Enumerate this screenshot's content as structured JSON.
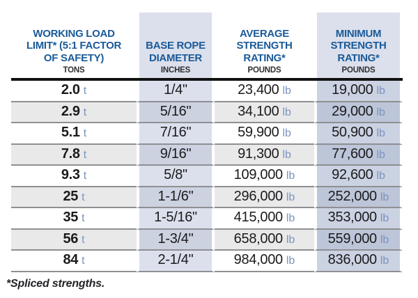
{
  "colors": {
    "header_text_blue": "#1a5a98",
    "unit_text_blue": "#7a93bf",
    "data_text_black": "#1b1b1d",
    "sub_header_gray": "#2e2e30",
    "column_band_light": "#dbe0ec",
    "column_band_col2_striped": "#ccd2e0",
    "column_band_col4": "#cbd2e2",
    "column_band_col4_striped": "#bdc5d8",
    "row_stripe_gray": "#e9e9ea",
    "row_divider_gray": "#8f8f93",
    "header_rule_black": "#121212"
  },
  "table": {
    "units": {
      "tons": "t",
      "pounds": "lb"
    },
    "columns": [
      {
        "title": "WORKING LOAD\nLIMIT* (5:1 FACTOR\nOF SAFETY)",
        "unit_label": "TONS"
      },
      {
        "title": "BASE ROPE\nDIAMETER",
        "unit_label": "INCHES"
      },
      {
        "title": "AVERAGE\nSTRENGTH\nRATING*",
        "unit_label": "POUNDS"
      },
      {
        "title": "MINIMUM\nSTRENGTH\nRATING*",
        "unit_label": "POUNDS"
      }
    ],
    "rows": [
      {
        "tons": "2.0",
        "diameter": "1/4\"",
        "average_lb": "23,400",
        "minimum_lb": "19,000"
      },
      {
        "tons": "2.9",
        "diameter": "5/16\"",
        "average_lb": "34,100",
        "minimum_lb": "29,000"
      },
      {
        "tons": "5.1",
        "diameter": "7/16\"",
        "average_lb": "59,900",
        "minimum_lb": "50,900"
      },
      {
        "tons": "7.8",
        "diameter": "9/16\"",
        "average_lb": "91,300",
        "minimum_lb": "77,600"
      },
      {
        "tons": "9.3",
        "diameter": "5/8\"",
        "average_lb": "109,000",
        "minimum_lb": "92,600"
      },
      {
        "tons": "25",
        "diameter": "1-1/6\"",
        "average_lb": "296,000",
        "minimum_lb": "252,000"
      },
      {
        "tons": "35",
        "diameter": "1-5/16\"",
        "average_lb": "415,000",
        "minimum_lb": "353,000"
      },
      {
        "tons": "56",
        "diameter": "1-3/4\"",
        "average_lb": "658,000",
        "minimum_lb": "559,000"
      },
      {
        "tons": "84",
        "diameter": "2-1/4\"",
        "average_lb": "984,000",
        "minimum_lb": "836,000"
      }
    ],
    "footnote": "*Spliced strengths."
  }
}
